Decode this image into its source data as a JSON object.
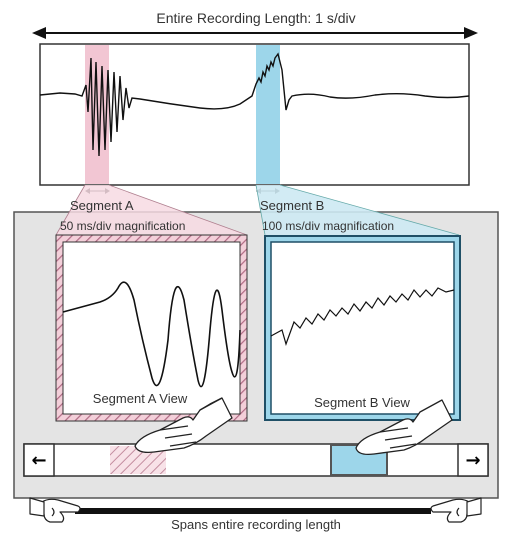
{
  "title": "Entire Recording Length: 1 s/div",
  "segment_a": {
    "label": "Segment A",
    "magnification": "50 ms/div magnification",
    "view_label": "Segment A View",
    "color": "#f2c6d3"
  },
  "segment_b": {
    "label": "Segment B",
    "magnification": "100 ms/div magnification",
    "view_label": "Segment B View",
    "color": "#9dd6ea"
  },
  "scrollbar": {
    "left_arrow": "←",
    "right_arrow": "→"
  },
  "footer": "Spans entire recording length",
  "colors": {
    "panel_bg": "#e4e4e4",
    "border": "#3a3a3a",
    "trace": "#111111",
    "segment_b_frame": "#1f4f66"
  }
}
